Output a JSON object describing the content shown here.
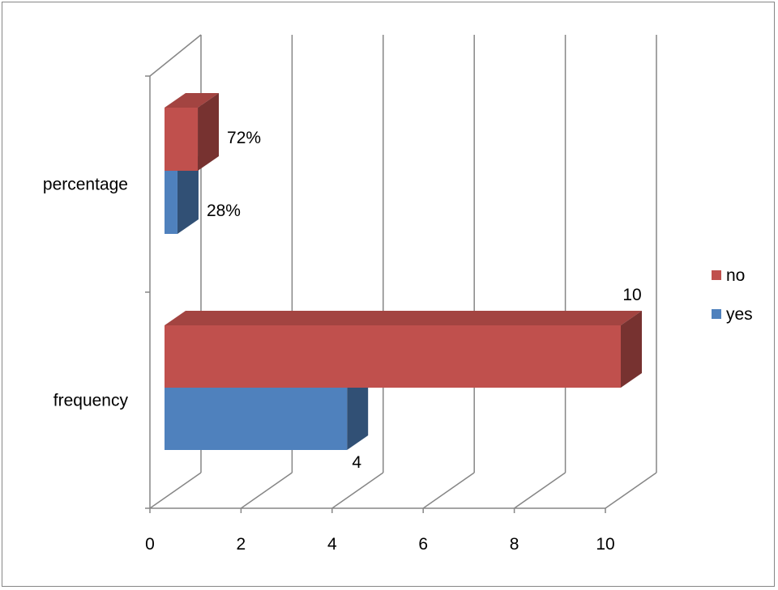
{
  "chart_data": {
    "type": "bar",
    "orientation": "horizontal",
    "style": "3d-clustered",
    "categories": [
      "frequency",
      "percentage"
    ],
    "series": [
      {
        "name": "yes",
        "values": [
          4,
          0.28
        ],
        "labels": [
          "4",
          "28%"
        ],
        "color": "#4F81BD"
      },
      {
        "name": "no",
        "values": [
          10,
          0.72
        ],
        "labels": [
          "10",
          "72%"
        ],
        "color": "#C0504D"
      }
    ],
    "xlim": [
      0,
      10
    ],
    "xticks": [
      "0",
      "2",
      "4",
      "6",
      "8",
      "10"
    ],
    "grid": true,
    "legend": "right",
    "legend_order": [
      "no",
      "yes"
    ]
  }
}
